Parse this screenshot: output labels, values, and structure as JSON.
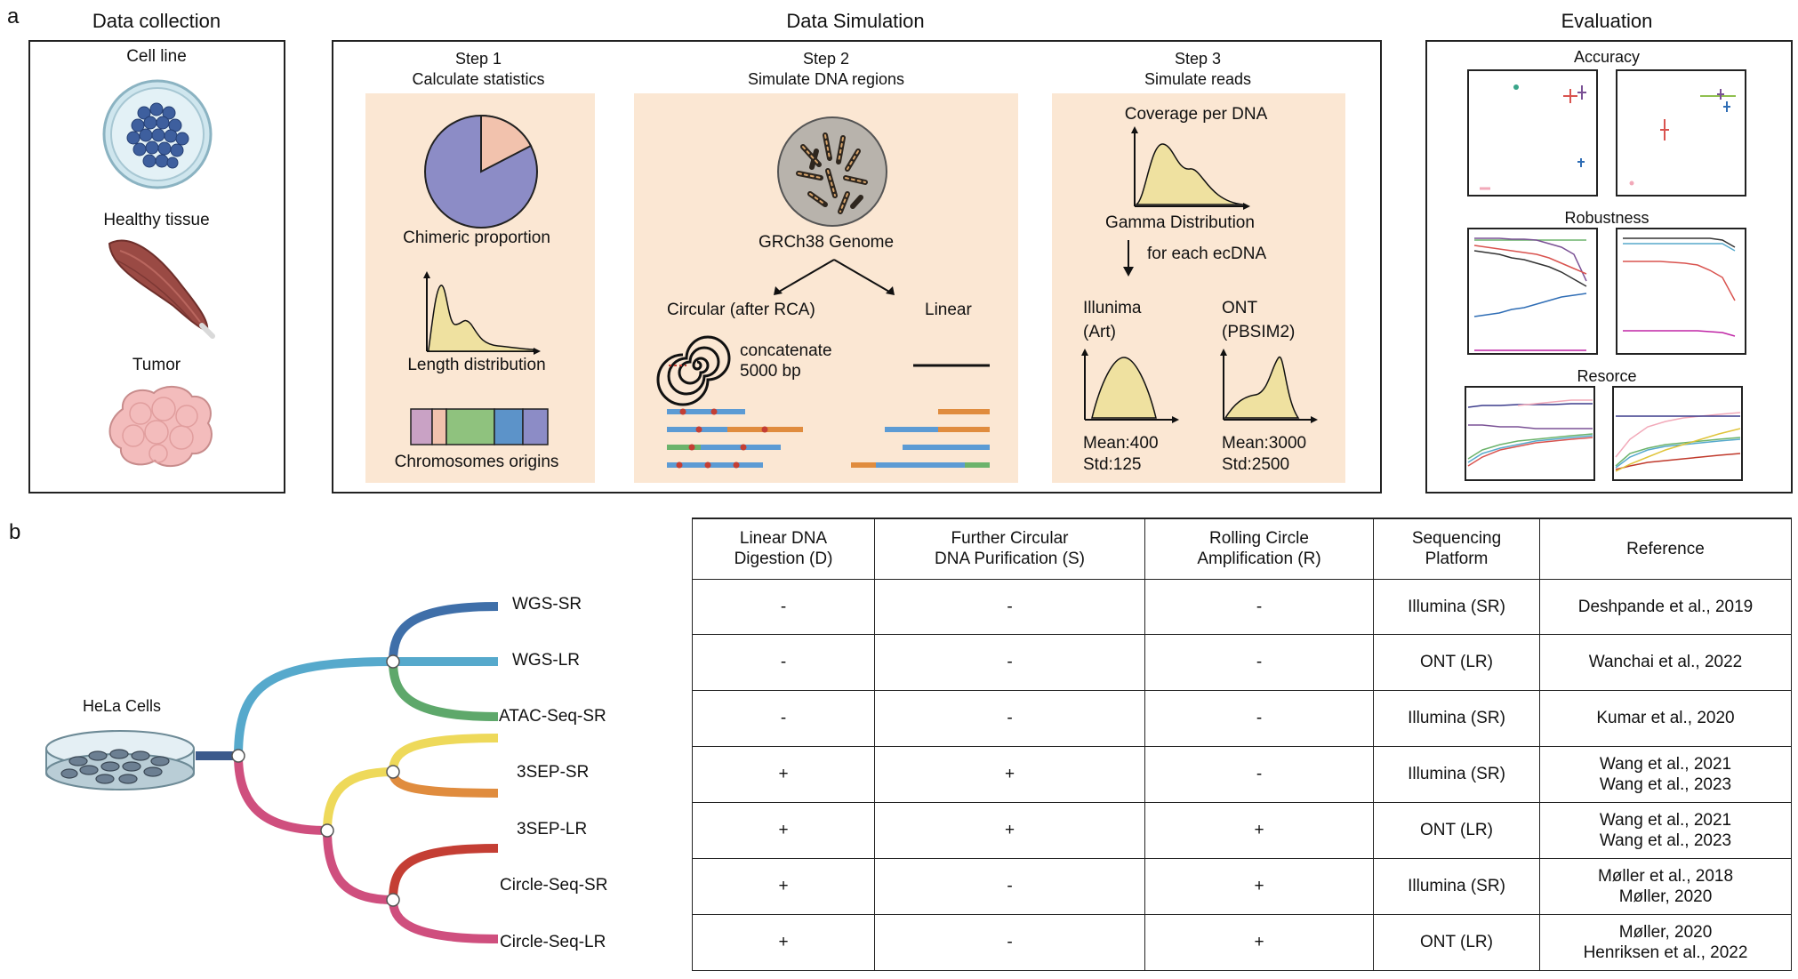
{
  "panel_a": {
    "letter": "a",
    "data_collection": {
      "title": "Data collection",
      "items": [
        "Cell line",
        "Healthy tissue",
        "Tumor"
      ]
    },
    "data_simulation": {
      "title": "Data Simulation",
      "step1": {
        "title": "Step 1",
        "subtitle": "Calculate statistics",
        "chimeric": "Chimeric proportion",
        "length": "Length distribution",
        "chromosomes": "Chromosomes origins"
      },
      "step2": {
        "title": "Step 2",
        "subtitle": "Simulate DNA regions",
        "genome": "GRCh38 Genome",
        "circular": "Circular (after RCA)",
        "linear": "Linear",
        "concat_1": "concatenate",
        "concat_2": "5000 bp"
      },
      "step3": {
        "title": "Step 3",
        "subtitle": "Simulate reads",
        "coverage": "Coverage per DNA",
        "gamma": "Gamma Distribution",
        "each": "for each ecDNA",
        "illumina_1": "Illunima",
        "illumina_2": "(Art)",
        "ont_1": "ONT",
        "ont_2": "(PBSIM2)",
        "illumina_mean": "Mean:400",
        "illumina_std": "Std:125",
        "ont_mean": "Mean:3000",
        "ont_std": "Std:2500"
      }
    },
    "evaluation": {
      "title": "Evaluation",
      "accuracy": "Accuracy",
      "robustness": "Robustness",
      "resource": "Resorce"
    },
    "colors": {
      "panel_bg": "#fbe7d3",
      "pie_main": "#8c8cc6",
      "pie_slice": "#f2c2ad",
      "curve_fill": "#efe1a0"
    }
  },
  "panel_b": {
    "letter": "b",
    "root_label": "HeLa Cells",
    "leaves": [
      {
        "label": "WGS-SR",
        "color": "#3f6fa9"
      },
      {
        "label": "WGS-LR",
        "color": "#56a9cc"
      },
      {
        "label": "ATAC-Seq-SR",
        "color": "#5ea86b"
      },
      {
        "label": "3SEP-SR",
        "color": "#eed95a"
      },
      {
        "label": "3SEP-LR",
        "color": "#e08c3e"
      },
      {
        "label": "Circle-Seq-SR",
        "color": "#c43e34"
      },
      {
        "label": "Circle-Seq-LR",
        "color": "#cf4f7e"
      }
    ],
    "branch_colors": {
      "root": "#3c5a8c",
      "upper": "#56a9cc",
      "lower": "#cf4f7e",
      "sep": "#eed95a",
      "circle": "#cf4f7e"
    },
    "table": {
      "headers": [
        [
          "Linear DNA",
          "Digestion (D)"
        ],
        [
          "Further Circular",
          "DNA Purification (S)"
        ],
        [
          "Rolling Circle",
          "Amplification (R)"
        ],
        [
          "Sequencing",
          "Platform"
        ],
        [
          "Reference"
        ]
      ],
      "rows": [
        [
          "-",
          "-",
          "-",
          "Illumina (SR)",
          [
            "Deshpande et al., 2019"
          ]
        ],
        [
          "-",
          "-",
          "-",
          "ONT (LR)",
          [
            "Wanchai et al., 2022"
          ]
        ],
        [
          "-",
          "-",
          "-",
          "Illumina (SR)",
          [
            "Kumar et al., 2020"
          ]
        ],
        [
          "+",
          "+",
          "-",
          "Illumina (SR)",
          [
            "Wang et al., 2021",
            "Wang et al., 2023"
          ]
        ],
        [
          "+",
          "+",
          "+",
          "ONT (LR)",
          [
            "Wang et al., 2021",
            "Wang et al., 2023"
          ]
        ],
        [
          "+",
          "-",
          "+",
          "Illumina (SR)",
          [
            "Møller et al., 2018",
            "Møller, 2020"
          ]
        ],
        [
          "+",
          "-",
          "+",
          "ONT (LR)",
          [
            "Møller, 2020",
            "Henriksen et al., 2022"
          ]
        ]
      ]
    }
  }
}
